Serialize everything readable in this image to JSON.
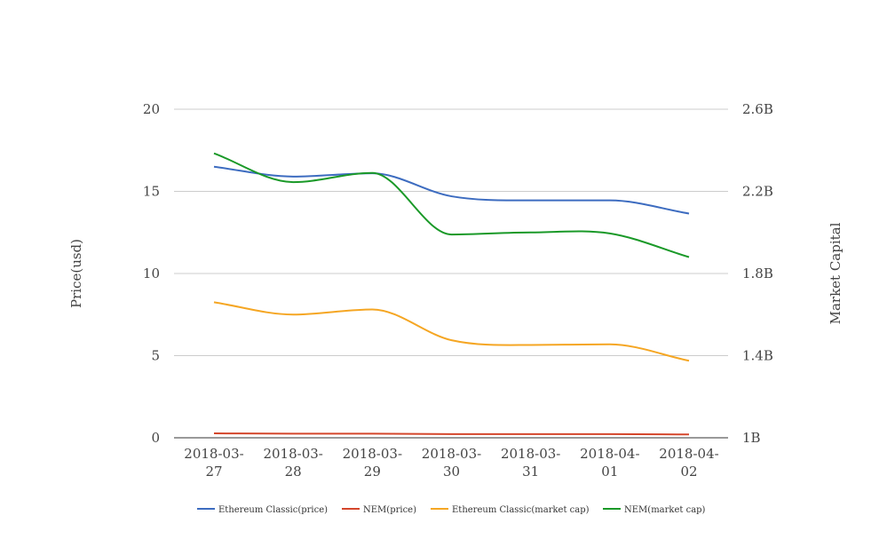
{
  "chart_data": {
    "type": "line",
    "smooth": true,
    "categories": [
      [
        "2018-03-",
        "27"
      ],
      [
        "2018-03-",
        "28"
      ],
      [
        "2018-03-",
        "29"
      ],
      [
        "2018-03-",
        "30"
      ],
      [
        "2018-03-",
        "31"
      ],
      [
        "2018-04-",
        "01"
      ],
      [
        "2018-04-",
        "02"
      ]
    ],
    "y_left": {
      "label": "Price(usd)",
      "range": [
        0,
        20
      ],
      "ticks": [
        0,
        5,
        10,
        15,
        20
      ],
      "tick_labels": [
        "0",
        "5",
        "10",
        "15",
        "20"
      ]
    },
    "y_right": {
      "label": "Market Capital",
      "range": [
        1000000000,
        2600000000
      ],
      "ticks": [
        1000000000,
        1400000000,
        1800000000,
        2200000000,
        2600000000
      ],
      "tick_labels": [
        "1B",
        "1.4B",
        "1.8B",
        "2.2B",
        "2.6B"
      ]
    },
    "grid": true,
    "legend_position": "bottom",
    "series": [
      {
        "name": "Ethereum Classic(price)",
        "axis": "left",
        "color": "#3d6cc0",
        "values": [
          16.5,
          15.9,
          16.1,
          14.7,
          14.45,
          14.45,
          13.65
        ]
      },
      {
        "name": "NEM(price)",
        "axis": "left",
        "color": "#d4462b",
        "values": [
          0.27,
          0.25,
          0.25,
          0.22,
          0.22,
          0.22,
          0.2
        ]
      },
      {
        "name": "Ethereum Classic(market cap)",
        "axis": "right",
        "color": "#f5a623",
        "values": [
          1660000000,
          1600000000,
          1625000000,
          1475000000,
          1452000000,
          1455000000,
          1375000000
        ]
      },
      {
        "name": "NEM(market cap)",
        "axis": "right",
        "color": "#1a9928",
        "values": [
          2385000000,
          2245000000,
          2290000000,
          1990000000,
          2000000000,
          1995000000,
          1880000000
        ]
      }
    ]
  }
}
